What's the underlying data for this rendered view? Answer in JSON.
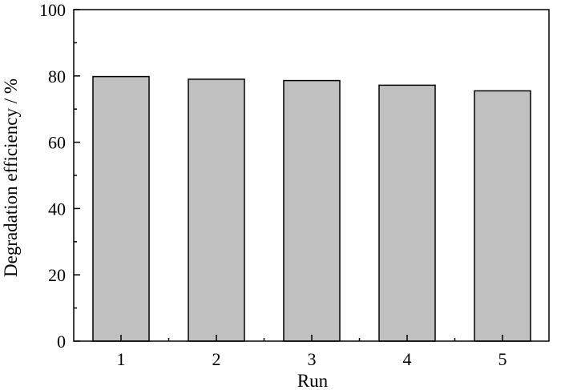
{
  "chart_data": {
    "type": "bar",
    "title": "",
    "xlabel": "Run",
    "ylabel": "Degradation efficiency / %",
    "categories": [
      "1",
      "2",
      "3",
      "4",
      "5"
    ],
    "values": [
      79.8,
      79.0,
      78.6,
      77.2,
      75.5
    ],
    "ylim": [
      0,
      100
    ],
    "yticks": [
      "0",
      "20",
      "40",
      "60",
      "80",
      "100"
    ],
    "grid": false,
    "legend": "none",
    "colors": {
      "bar_fill": "#c0c0c0",
      "bar_stroke": "#000000",
      "axis": "#000000"
    }
  }
}
